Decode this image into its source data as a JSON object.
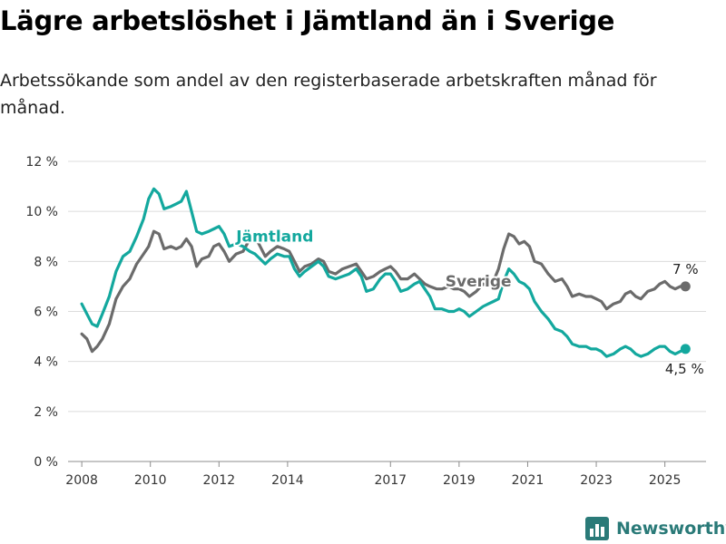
{
  "header": {
    "title": "Lägre arbetslöshet i Jämtland än i Sverige",
    "subtitle": "Arbetssökande som andel av den registerbaserade arbetskraften månad för månad."
  },
  "brand": {
    "name": "Newsworthy",
    "icon": "bar-chart-logo-icon",
    "color": "#2a7a78"
  },
  "chart_data": {
    "type": "line",
    "title": "Lägre arbetslöshet i Jämtland än i Sverige",
    "subtitle": "Arbetssökande som andel av den registerbaserade arbetskraften månad för månad.",
    "xlabel": "",
    "ylabel": "",
    "xlim": [
      2007.6,
      2026.2
    ],
    "ylim": [
      0,
      12
    ],
    "yticks": [
      0,
      2,
      4,
      6,
      8,
      10,
      12
    ],
    "ytick_labels": [
      "0 %",
      "2 %",
      "4 %",
      "6 %",
      "8 %",
      "10 %",
      "12 %"
    ],
    "xticks": [
      2008,
      2010,
      2012,
      2014,
      2017,
      2019,
      2021,
      2023,
      2025
    ],
    "xtick_labels": [
      "2008",
      "2010",
      "2012",
      "2014",
      "2017",
      "2019",
      "2021",
      "2023",
      "2025"
    ],
    "grid": true,
    "series": [
      {
        "name": "Sverige",
        "color": "#6b6b6b",
        "end_label": "7 %",
        "points": [
          [
            2008.0,
            5.1
          ],
          [
            2008.15,
            4.9
          ],
          [
            2008.3,
            4.4
          ],
          [
            2008.45,
            4.6
          ],
          [
            2008.6,
            4.9
          ],
          [
            2008.8,
            5.5
          ],
          [
            2009.0,
            6.5
          ],
          [
            2009.2,
            7.0
          ],
          [
            2009.4,
            7.3
          ],
          [
            2009.6,
            7.9
          ],
          [
            2009.8,
            8.3
          ],
          [
            2009.95,
            8.6
          ],
          [
            2010.1,
            9.2
          ],
          [
            2010.25,
            9.1
          ],
          [
            2010.4,
            8.5
          ],
          [
            2010.6,
            8.6
          ],
          [
            2010.75,
            8.5
          ],
          [
            2010.9,
            8.6
          ],
          [
            2011.05,
            8.9
          ],
          [
            2011.2,
            8.6
          ],
          [
            2011.35,
            7.8
          ],
          [
            2011.5,
            8.1
          ],
          [
            2011.7,
            8.2
          ],
          [
            2011.85,
            8.6
          ],
          [
            2012.0,
            8.7
          ],
          [
            2012.15,
            8.4
          ],
          [
            2012.3,
            8.0
          ],
          [
            2012.5,
            8.3
          ],
          [
            2012.7,
            8.4
          ],
          [
            2012.9,
            8.9
          ],
          [
            2013.05,
            9.0
          ],
          [
            2013.2,
            8.6
          ],
          [
            2013.35,
            8.2
          ],
          [
            2013.5,
            8.4
          ],
          [
            2013.7,
            8.6
          ],
          [
            2013.9,
            8.5
          ],
          [
            2014.05,
            8.4
          ],
          [
            2014.2,
            8.0
          ],
          [
            2014.35,
            7.6
          ],
          [
            2014.5,
            7.8
          ],
          [
            2014.7,
            7.9
          ],
          [
            2014.9,
            8.1
          ],
          [
            2015.05,
            8.0
          ],
          [
            2015.2,
            7.6
          ],
          [
            2015.4,
            7.5
          ],
          [
            2015.6,
            7.7
          ],
          [
            2015.8,
            7.8
          ],
          [
            2016.0,
            7.9
          ],
          [
            2016.15,
            7.6
          ],
          [
            2016.3,
            7.3
          ],
          [
            2016.5,
            7.4
          ],
          [
            2016.7,
            7.6
          ],
          [
            2016.85,
            7.7
          ],
          [
            2017.0,
            7.8
          ],
          [
            2017.15,
            7.6
          ],
          [
            2017.3,
            7.3
          ],
          [
            2017.5,
            7.3
          ],
          [
            2017.7,
            7.5
          ],
          [
            2017.85,
            7.3
          ],
          [
            2018.0,
            7.1
          ],
          [
            2018.15,
            7.0
          ],
          [
            2018.35,
            6.9
          ],
          [
            2018.5,
            6.9
          ],
          [
            2018.7,
            7.0
          ],
          [
            2018.85,
            6.9
          ],
          [
            2019.0,
            6.9
          ],
          [
            2019.15,
            6.8
          ],
          [
            2019.3,
            6.6
          ],
          [
            2019.5,
            6.8
          ],
          [
            2019.7,
            7.1
          ],
          [
            2019.85,
            7.0
          ],
          [
            2020.0,
            7.2
          ],
          [
            2020.15,
            7.7
          ],
          [
            2020.3,
            8.5
          ],
          [
            2020.45,
            9.1
          ],
          [
            2020.6,
            9.0
          ],
          [
            2020.75,
            8.7
          ],
          [
            2020.9,
            8.8
          ],
          [
            2021.05,
            8.6
          ],
          [
            2021.2,
            8.0
          ],
          [
            2021.4,
            7.9
          ],
          [
            2021.6,
            7.5
          ],
          [
            2021.8,
            7.2
          ],
          [
            2022.0,
            7.3
          ],
          [
            2022.15,
            7.0
          ],
          [
            2022.3,
            6.6
          ],
          [
            2022.5,
            6.7
          ],
          [
            2022.7,
            6.6
          ],
          [
            2022.85,
            6.6
          ],
          [
            2023.0,
            6.5
          ],
          [
            2023.15,
            6.4
          ],
          [
            2023.3,
            6.1
          ],
          [
            2023.5,
            6.3
          ],
          [
            2023.7,
            6.4
          ],
          [
            2023.85,
            6.7
          ],
          [
            2024.0,
            6.8
          ],
          [
            2024.15,
            6.6
          ],
          [
            2024.3,
            6.5
          ],
          [
            2024.5,
            6.8
          ],
          [
            2024.7,
            6.9
          ],
          [
            2024.85,
            7.1
          ],
          [
            2025.0,
            7.2
          ],
          [
            2025.15,
            7.0
          ],
          [
            2025.3,
            6.9
          ],
          [
            2025.45,
            7.0
          ],
          [
            2025.6,
            7.0
          ]
        ]
      },
      {
        "name": "Jämtland",
        "color": "#13a89e",
        "end_label": "4,5 %",
        "points": [
          [
            2008.0,
            6.3
          ],
          [
            2008.15,
            5.9
          ],
          [
            2008.3,
            5.5
          ],
          [
            2008.45,
            5.4
          ],
          [
            2008.6,
            5.9
          ],
          [
            2008.8,
            6.6
          ],
          [
            2009.0,
            7.6
          ],
          [
            2009.2,
            8.2
          ],
          [
            2009.4,
            8.4
          ],
          [
            2009.6,
            9.0
          ],
          [
            2009.8,
            9.7
          ],
          [
            2009.95,
            10.5
          ],
          [
            2010.1,
            10.9
          ],
          [
            2010.25,
            10.7
          ],
          [
            2010.4,
            10.1
          ],
          [
            2010.6,
            10.2
          ],
          [
            2010.75,
            10.3
          ],
          [
            2010.9,
            10.4
          ],
          [
            2011.05,
            10.8
          ],
          [
            2011.2,
            10.0
          ],
          [
            2011.35,
            9.2
          ],
          [
            2011.5,
            9.1
          ],
          [
            2011.7,
            9.2
          ],
          [
            2011.85,
            9.3
          ],
          [
            2012.0,
            9.4
          ],
          [
            2012.15,
            9.1
          ],
          [
            2012.3,
            8.6
          ],
          [
            2012.5,
            8.7
          ],
          [
            2012.7,
            8.6
          ],
          [
            2012.9,
            8.4
          ],
          [
            2013.05,
            8.3
          ],
          [
            2013.2,
            8.1
          ],
          [
            2013.35,
            7.9
          ],
          [
            2013.5,
            8.1
          ],
          [
            2013.7,
            8.3
          ],
          [
            2013.9,
            8.2
          ],
          [
            2014.05,
            8.2
          ],
          [
            2014.2,
            7.7
          ],
          [
            2014.35,
            7.4
          ],
          [
            2014.5,
            7.6
          ],
          [
            2014.7,
            7.8
          ],
          [
            2014.9,
            8.0
          ],
          [
            2015.05,
            7.8
          ],
          [
            2015.2,
            7.4
          ],
          [
            2015.4,
            7.3
          ],
          [
            2015.6,
            7.4
          ],
          [
            2015.8,
            7.5
          ],
          [
            2016.0,
            7.7
          ],
          [
            2016.15,
            7.4
          ],
          [
            2016.3,
            6.8
          ],
          [
            2016.5,
            6.9
          ],
          [
            2016.7,
            7.3
          ],
          [
            2016.85,
            7.5
          ],
          [
            2017.0,
            7.5
          ],
          [
            2017.15,
            7.2
          ],
          [
            2017.3,
            6.8
          ],
          [
            2017.5,
            6.9
          ],
          [
            2017.7,
            7.1
          ],
          [
            2017.85,
            7.2
          ],
          [
            2018.0,
            6.9
          ],
          [
            2018.15,
            6.6
          ],
          [
            2018.3,
            6.1
          ],
          [
            2018.5,
            6.1
          ],
          [
            2018.7,
            6.0
          ],
          [
            2018.85,
            6.0
          ],
          [
            2019.0,
            6.1
          ],
          [
            2019.15,
            6.0
          ],
          [
            2019.3,
            5.8
          ],
          [
            2019.5,
            6.0
          ],
          [
            2019.7,
            6.2
          ],
          [
            2019.85,
            6.3
          ],
          [
            2020.0,
            6.4
          ],
          [
            2020.15,
            6.5
          ],
          [
            2020.3,
            7.2
          ],
          [
            2020.45,
            7.7
          ],
          [
            2020.6,
            7.5
          ],
          [
            2020.75,
            7.2
          ],
          [
            2020.9,
            7.1
          ],
          [
            2021.05,
            6.9
          ],
          [
            2021.2,
            6.4
          ],
          [
            2021.4,
            6.0
          ],
          [
            2021.6,
            5.7
          ],
          [
            2021.8,
            5.3
          ],
          [
            2022.0,
            5.2
          ],
          [
            2022.15,
            5.0
          ],
          [
            2022.3,
            4.7
          ],
          [
            2022.5,
            4.6
          ],
          [
            2022.7,
            4.6
          ],
          [
            2022.85,
            4.5
          ],
          [
            2023.0,
            4.5
          ],
          [
            2023.15,
            4.4
          ],
          [
            2023.3,
            4.2
          ],
          [
            2023.5,
            4.3
          ],
          [
            2023.7,
            4.5
          ],
          [
            2023.85,
            4.6
          ],
          [
            2024.0,
            4.5
          ],
          [
            2024.15,
            4.3
          ],
          [
            2024.3,
            4.2
          ],
          [
            2024.5,
            4.3
          ],
          [
            2024.7,
            4.5
          ],
          [
            2024.85,
            4.6
          ],
          [
            2025.0,
            4.6
          ],
          [
            2025.15,
            4.4
          ],
          [
            2025.3,
            4.3
          ],
          [
            2025.45,
            4.4
          ],
          [
            2025.6,
            4.5
          ]
        ]
      }
    ]
  }
}
